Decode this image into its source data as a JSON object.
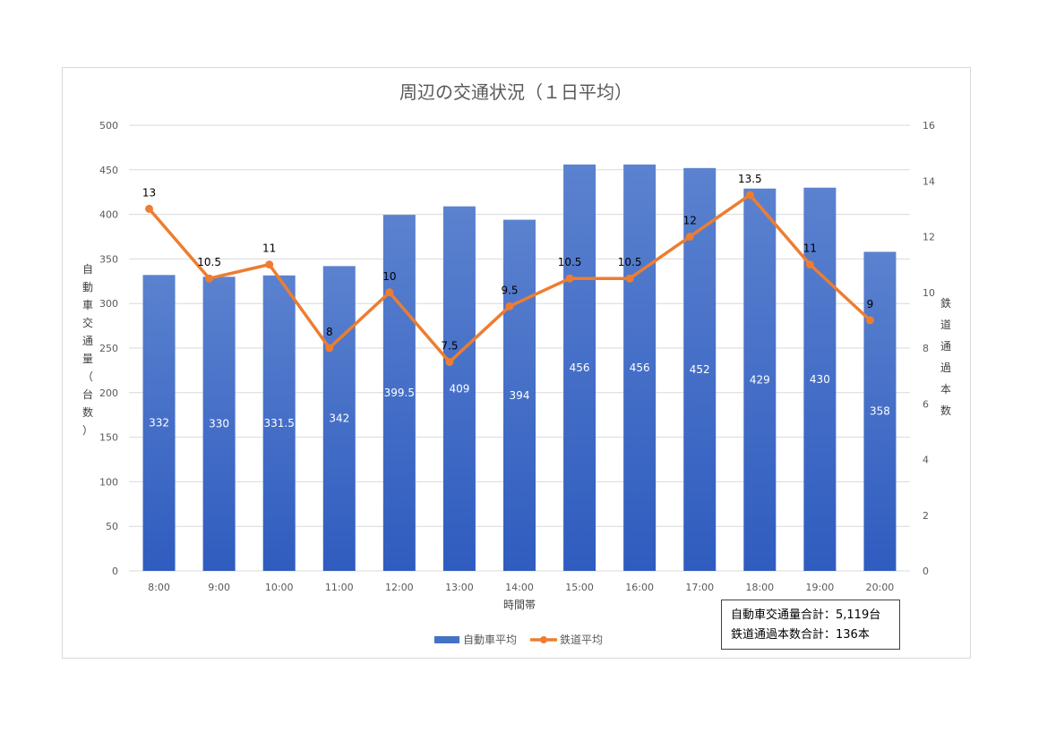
{
  "chart_data": {
    "type": "bar",
    "title": "周辺の交通状況（１日平均）",
    "xlabel": "時間帯",
    "ylabel": "自動車交通量（台数）",
    "y2label": "鉄道通過本数",
    "categories": [
      "8:00",
      "9:00",
      "10:00",
      "11:00",
      "12:00",
      "13:00",
      "14:00",
      "15:00",
      "16:00",
      "17:00",
      "18:00",
      "19:00",
      "20:00"
    ],
    "ylim": [
      0,
      500
    ],
    "y2lim": [
      0,
      16
    ],
    "yticks": [
      "0",
      "50",
      "100",
      "150",
      "200",
      "250",
      "300",
      "350",
      "400",
      "450",
      "500"
    ],
    "y2ticks": [
      "0",
      "2",
      "4",
      "6",
      "8",
      "10",
      "12",
      "14",
      "16"
    ],
    "grid": true,
    "legend_position": "bottom",
    "series": [
      {
        "name": "自動車平均",
        "kind": "bar",
        "axis": "left",
        "color": "#4472c4",
        "values": [
          332,
          330,
          331.5,
          342,
          399.5,
          409,
          394,
          456,
          456,
          452,
          429,
          430,
          358
        ],
        "labels": [
          "332",
          "330",
          "331.5",
          "342",
          "399.5",
          "409",
          "394",
          "456",
          "456",
          "452",
          "429",
          "430",
          "358"
        ]
      },
      {
        "name": "鉄道平均",
        "kind": "line",
        "axis": "right",
        "color": "#ed7d31",
        "values": [
          13,
          10.5,
          11,
          8,
          10,
          7.5,
          9.5,
          10.5,
          10.5,
          12,
          13.5,
          11,
          9
        ],
        "labels": [
          "13",
          "10.5",
          "11",
          "8",
          "10",
          "7.5",
          "9.5",
          "10.5",
          "10.5",
          "12",
          "13.5",
          "11",
          "9"
        ]
      }
    ]
  },
  "totals": {
    "line1": "自動車交通量合計：5,119台",
    "line2": "鉄道通過本数合計：136本"
  }
}
